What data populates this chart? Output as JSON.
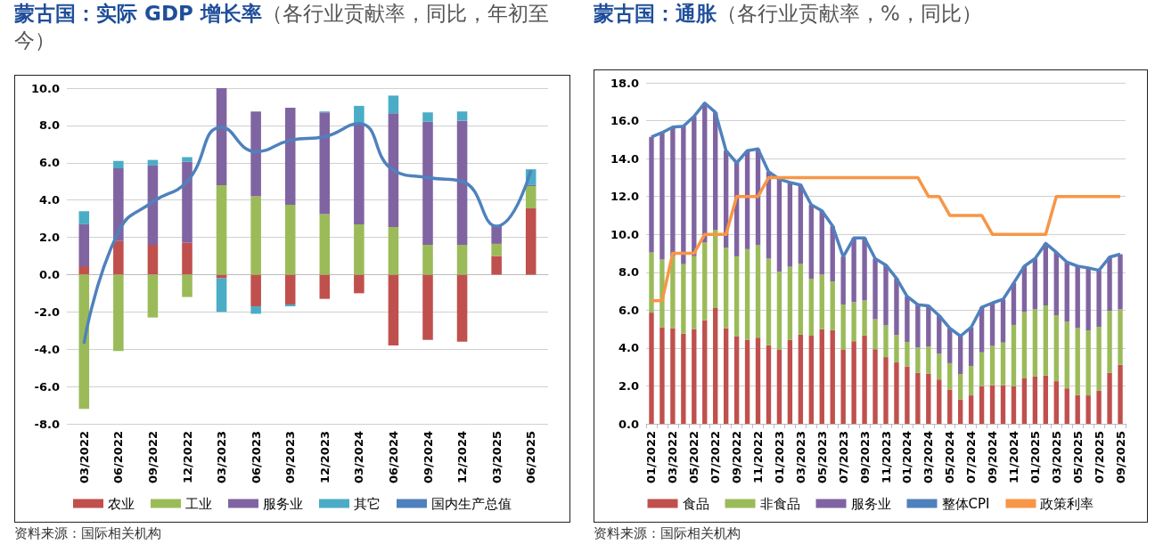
{
  "chart_data": [
    {
      "type": "bar",
      "stacked": true,
      "title": "蒙古国：实际 GDP 增长率",
      "subtitle": "（各行业贡献率，同比，年初至今）",
      "categories": [
        "03/2022",
        "06/2022",
        "09/2022",
        "12/2022",
        "03/2023",
        "06/2023",
        "09/2023",
        "12/2023",
        "03/2024",
        "06/2024",
        "09/2024",
        "12/2024",
        "03/2025",
        "06/2025"
      ],
      "series": [
        {
          "name": "农业",
          "color": "#c0504d",
          "values": [
            0.45,
            1.8,
            1.6,
            1.7,
            -0.2,
            -1.7,
            -1.6,
            -1.3,
            -1.0,
            -3.8,
            -3.5,
            -3.6,
            1.0,
            3.55
          ]
        },
        {
          "name": "工业",
          "color": "#9bbb59",
          "values": [
            -7.2,
            -4.1,
            -2.3,
            -1.2,
            4.8,
            4.2,
            3.75,
            3.25,
            2.7,
            2.55,
            1.6,
            1.6,
            0.65,
            1.2
          ]
        },
        {
          "name": "服务业",
          "color": "#8064a2",
          "values": [
            2.25,
            3.9,
            4.25,
            4.35,
            5.2,
            4.55,
            5.2,
            5.45,
            5.4,
            6.1,
            6.6,
            6.65,
            0.95,
            0.05
          ]
        },
        {
          "name": "其它",
          "color": "#4bacc6",
          "values": [
            0.7,
            0.4,
            0.3,
            0.25,
            -1.8,
            -0.4,
            -0.1,
            0.05,
            0.95,
            0.95,
            0.5,
            0.5,
            0,
            0.85
          ]
        },
        {
          "name": "国内生产总值",
          "type": "line",
          "color": "#4f81bd",
          "values": [
            -3.7,
            2.3,
            3.9,
            5.0,
            7.9,
            6.6,
            7.2,
            7.4,
            8.1,
            5.6,
            5.2,
            5.0,
            2.6,
            5.6
          ]
        }
      ],
      "ylim": [
        -8,
        10
      ],
      "yticks": [
        {
          "value": -8,
          "label": "-8.0"
        },
        {
          "value": -6,
          "label": "-6.0"
        },
        {
          "value": -4,
          "label": "-4.0"
        },
        {
          "value": -2,
          "label": "-2.0"
        },
        {
          "value": 0,
          "label": "0.0"
        },
        {
          "value": 2,
          "label": "2.0"
        },
        {
          "value": 4,
          "label": "4.0"
        },
        {
          "value": 6,
          "label": "6.0"
        },
        {
          "value": 8,
          "label": "8.0"
        },
        {
          "value": 10,
          "label": "10.0"
        }
      ],
      "grid": "y",
      "legend": "bottom",
      "marker": "none",
      "annotations": [
        "资料来源：国际相关机构"
      ]
    },
    {
      "type": "bar",
      "stacked": true,
      "title": "蒙古国：通胀",
      "subtitle": "（各行业贡献率，%，同比）",
      "categories": [
        "01/2022",
        null,
        "03/2022",
        null,
        "05/2022",
        null,
        "07/2022",
        null,
        "09/2022",
        null,
        "11/2022",
        null,
        "01/2023",
        null,
        "03/2023",
        null,
        "05/2023",
        null,
        "07/2023",
        null,
        "09/2023",
        null,
        "11/2023",
        null,
        "01/2024",
        null,
        "03/2024",
        null,
        "05/2024",
        null,
        "07/2024",
        null,
        "09/2024",
        null,
        "11/2024",
        null,
        "01/2025",
        null,
        "03/2025",
        null,
        "05/2025",
        null,
        "07/2025",
        null,
        "09/2025"
      ],
      "series": [
        {
          "name": "食品",
          "color": "#c0504d",
          "values": [
            5.87,
            5.1,
            5.05,
            4.76,
            5.0,
            5.47,
            6.11,
            5.05,
            4.63,
            4.44,
            4.55,
            4.15,
            3.9,
            4.44,
            4.72,
            4.65,
            4.99,
            4.95,
            3.9,
            4.36,
            4.67,
            3.94,
            3.52,
            3.24,
            3.03,
            2.7,
            2.65,
            2.34,
            1.81,
            1.28,
            1.5,
            1.98,
            2.04,
            2.04,
            1.98,
            2.4,
            2.5,
            2.55,
            2.25,
            1.87,
            1.52,
            1.5,
            1.75,
            2.7,
            3.12
          ]
        },
        {
          "name": "非食品",
          "color": "#9bbb59",
          "values": [
            3.18,
            3.57,
            3.8,
            3.66,
            3.85,
            4.11,
            4.14,
            4.25,
            4.21,
            4.78,
            4.88,
            4.57,
            4.12,
            3.85,
            3.74,
            3.01,
            2.88,
            2.57,
            2.39,
            2.06,
            1.84,
            1.58,
            1.68,
            1.46,
            1.29,
            1.32,
            1.43,
            1.36,
            1.39,
            1.35,
            1.55,
            1.79,
            2.07,
            2.25,
            3.24,
            3.5,
            3.54,
            3.7,
            3.48,
            3.52,
            3.53,
            3.43,
            3.37,
            3.26,
            2.92
          ]
        },
        {
          "name": "服务业",
          "color": "#8064a2",
          "values": [
            6.09,
            6.7,
            6.81,
            7.29,
            7.38,
            7.35,
            6.19,
            5.12,
            4.93,
            5.2,
            5.08,
            4.58,
            4.89,
            4.45,
            4.15,
            3.9,
            3.37,
            2.92,
            2.53,
            3.39,
            3.3,
            3.2,
            3.18,
            2.98,
            2.4,
            2.27,
            2.15,
            2.01,
            1.85,
            2.0,
            2.04,
            2.38,
            2.27,
            2.28,
            2.21,
            2.42,
            2.68,
            3.27,
            3.32,
            3.14,
            3.27,
            3.3,
            2.98,
            2.84,
            2.91
          ]
        },
        {
          "name": "整体CPI",
          "type": "line",
          "color": "#4f81bd",
          "values": [
            15.14,
            15.37,
            15.66,
            15.71,
            16.23,
            16.93,
            16.44,
            14.42,
            13.77,
            14.42,
            14.51,
            13.3,
            12.91,
            12.74,
            12.61,
            11.56,
            11.24,
            10.44,
            8.82,
            9.81,
            9.81,
            8.72,
            8.38,
            7.68,
            6.72,
            6.29,
            6.23,
            5.71,
            5.05,
            4.63,
            5.09,
            6.15,
            6.38,
            6.57,
            7.43,
            8.32,
            8.72,
            9.52,
            9.05,
            8.53,
            8.32,
            8.23,
            8.1,
            8.8,
            8.95
          ]
        },
        {
          "name": "政策利率",
          "type": "line",
          "color": "#f79646",
          "values": [
            6.5,
            6.5,
            9,
            9,
            9,
            10,
            10,
            10,
            12,
            12,
            12,
            13,
            13,
            13,
            13,
            13,
            13,
            13,
            13,
            13,
            13,
            13,
            13,
            13,
            13,
            13,
            12,
            12,
            11,
            11,
            11,
            11,
            10,
            10,
            10,
            10,
            10,
            10,
            12,
            12,
            12,
            12,
            12,
            12,
            12
          ]
        }
      ],
      "ylim": [
        0,
        18
      ],
      "yticks": [
        {
          "value": 0,
          "label": "0.0"
        },
        {
          "value": 2,
          "label": "2.0"
        },
        {
          "value": 4,
          "label": "4.0"
        },
        {
          "value": 6,
          "label": "6.0"
        },
        {
          "value": 8,
          "label": "8.0"
        },
        {
          "value": 10,
          "label": "10.0"
        },
        {
          "value": 12,
          "label": "12.0"
        },
        {
          "value": 14,
          "label": "14.0"
        },
        {
          "value": 16,
          "label": "16.0"
        },
        {
          "value": 18,
          "label": "18.0"
        }
      ],
      "grid": "y",
      "legend": "bottom",
      "marker": "none",
      "annotations": [
        "资料来源：国际相关机构"
      ]
    }
  ]
}
